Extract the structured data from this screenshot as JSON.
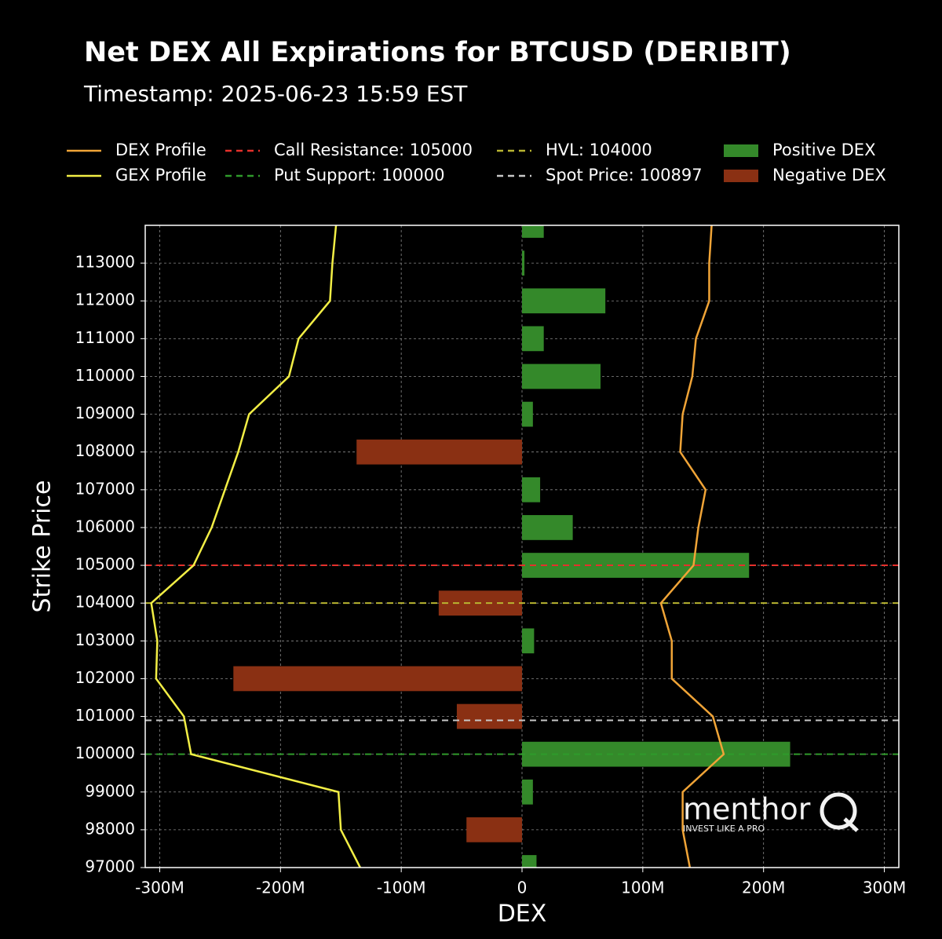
{
  "chart_data": {
    "type": "bar",
    "orientation": "horizontal",
    "title": "Net DEX All Expirations for BTCUSD (DERIBIT)",
    "subtitle": "Timestamp: 2025-06-23 15:59 EST",
    "xlabel": "DEX",
    "ylabel": "Strike Price",
    "y": [
      97000,
      98000,
      99000,
      100000,
      101000,
      102000,
      103000,
      104000,
      105000,
      106000,
      107000,
      108000,
      109000,
      110000,
      111000,
      112000,
      113000,
      114000
    ],
    "series": [
      {
        "name": "Positive DEX",
        "color": "#34892a",
        "values": [
          12000000,
          null,
          9000000,
          222000000,
          null,
          null,
          10000000,
          null,
          188000000,
          42000000,
          15000000,
          null,
          9000000,
          65000000,
          18000000,
          69000000,
          2000000,
          18000000
        ]
      },
      {
        "name": "Negative DEX",
        "color": "#8a3013",
        "values": [
          null,
          -46000000,
          null,
          null,
          -54000000,
          -239000000,
          null,
          -69000000,
          null,
          null,
          null,
          -137000000,
          null,
          null,
          null,
          null,
          null,
          null
        ]
      }
    ],
    "lines": [
      {
        "name": "DEX Profile",
        "color": "#f0a437",
        "values": [
          139000000,
          133000000,
          133000000,
          167000000,
          158000000,
          124000000,
          124000000,
          115000000,
          142000000,
          146000000,
          152000000,
          131000000,
          133000000,
          141000000,
          144000000,
          155000000,
          155000000,
          157000000
        ]
      },
      {
        "name": "GEX Profile",
        "color": "#f2ee45",
        "values": [
          -134000000,
          -150000000,
          -152000000,
          -274000000,
          -280000000,
          -303000000,
          -302000000,
          -307000000,
          -272000000,
          -257000000,
          -246000000,
          -235000000,
          -226000000,
          -193000000,
          -185000000,
          -159000000,
          -157000000,
          -154000000
        ]
      }
    ],
    "reference_lines": [
      {
        "name": "Call Resistance: 105000",
        "value": 105000,
        "color": "#e5302b"
      },
      {
        "name": "Put Support: 100000",
        "value": 100000,
        "color": "#2f9a2b"
      },
      {
        "name": "HVL: 104000",
        "value": 104000,
        "color": "#b8b431"
      },
      {
        "name": "Spot Price: 100897",
        "value": 100897,
        "color": "#c8c8c8"
      }
    ],
    "xlim": [
      -312000000,
      312000000
    ],
    "xticks": [
      {
        "value": -300000000,
        "label": "-300M"
      },
      {
        "value": -200000000,
        "label": "-200M"
      },
      {
        "value": -100000000,
        "label": "-100M"
      },
      0,
      {
        "value": 100000000,
        "label": "100M"
      },
      {
        "value": 200000000,
        "label": "200M"
      },
      {
        "value": 300000000,
        "label": "300M"
      }
    ],
    "ylim": [
      97000,
      114000
    ],
    "yticks": [
      97000,
      98000,
      99000,
      100000,
      101000,
      102000,
      103000,
      104000,
      105000,
      106000,
      107000,
      108000,
      109000,
      110000,
      111000,
      112000,
      113000
    ],
    "grid": true,
    "watermark": {
      "text": "menthor",
      "tagline": "INVEST LIKE A PRO"
    }
  }
}
